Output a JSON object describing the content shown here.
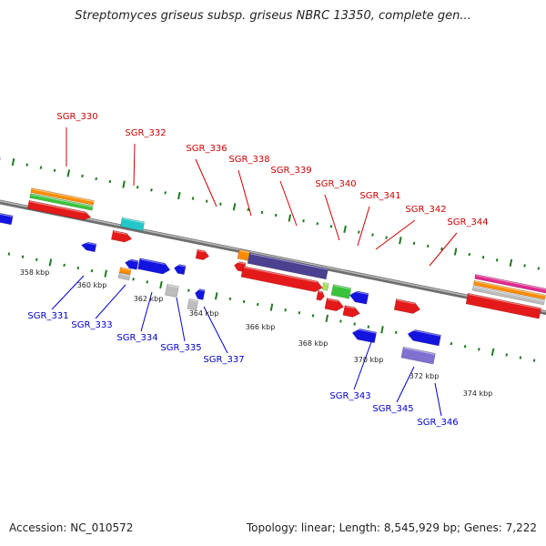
{
  "header": {
    "title": "Streptomyces griseus subsp. griseus NBRC 13350, complete gen..."
  },
  "footer": {
    "accession": "Accession: NC_010572",
    "summary": "Topology: linear; Length: 8,545,929 bp; Genes: 7,222"
  },
  "colors": {
    "backbone": "#8a8a8a",
    "tick": "#1f7a1f",
    "red": "#e41a1a",
    "blue": "#1414e0",
    "navy": "#4a4290",
    "orange": "#ff8c00",
    "green": "#3ac33a",
    "lime": "#a8e05a",
    "cyan": "#22c8c8",
    "magenta": "#e0288c",
    "gray": "#bdbdbd",
    "purple": "#8070d0",
    "label_forward": "#cc0000",
    "label_reverse": "#0000cc"
  },
  "scale_labels": [
    "358 kbp",
    "360 kbp",
    "362 kbp",
    "364 kbp",
    "366 kbp",
    "368 kbp",
    "370 kbp",
    "372 kbp",
    "374 kbp"
  ],
  "forward_genes": [
    "SGR_330",
    "SGR_332",
    "SGR_336",
    "SGR_338",
    "SGR_339",
    "SGR_340",
    "SGR_341",
    "SGR_342",
    "SGR_344"
  ],
  "reverse_genes": [
    "SGR_331",
    "SGR_333",
    "SGR_334",
    "SGR_335",
    "SGR_337",
    "SGR_343",
    "SGR_345",
    "SGR_346"
  ]
}
